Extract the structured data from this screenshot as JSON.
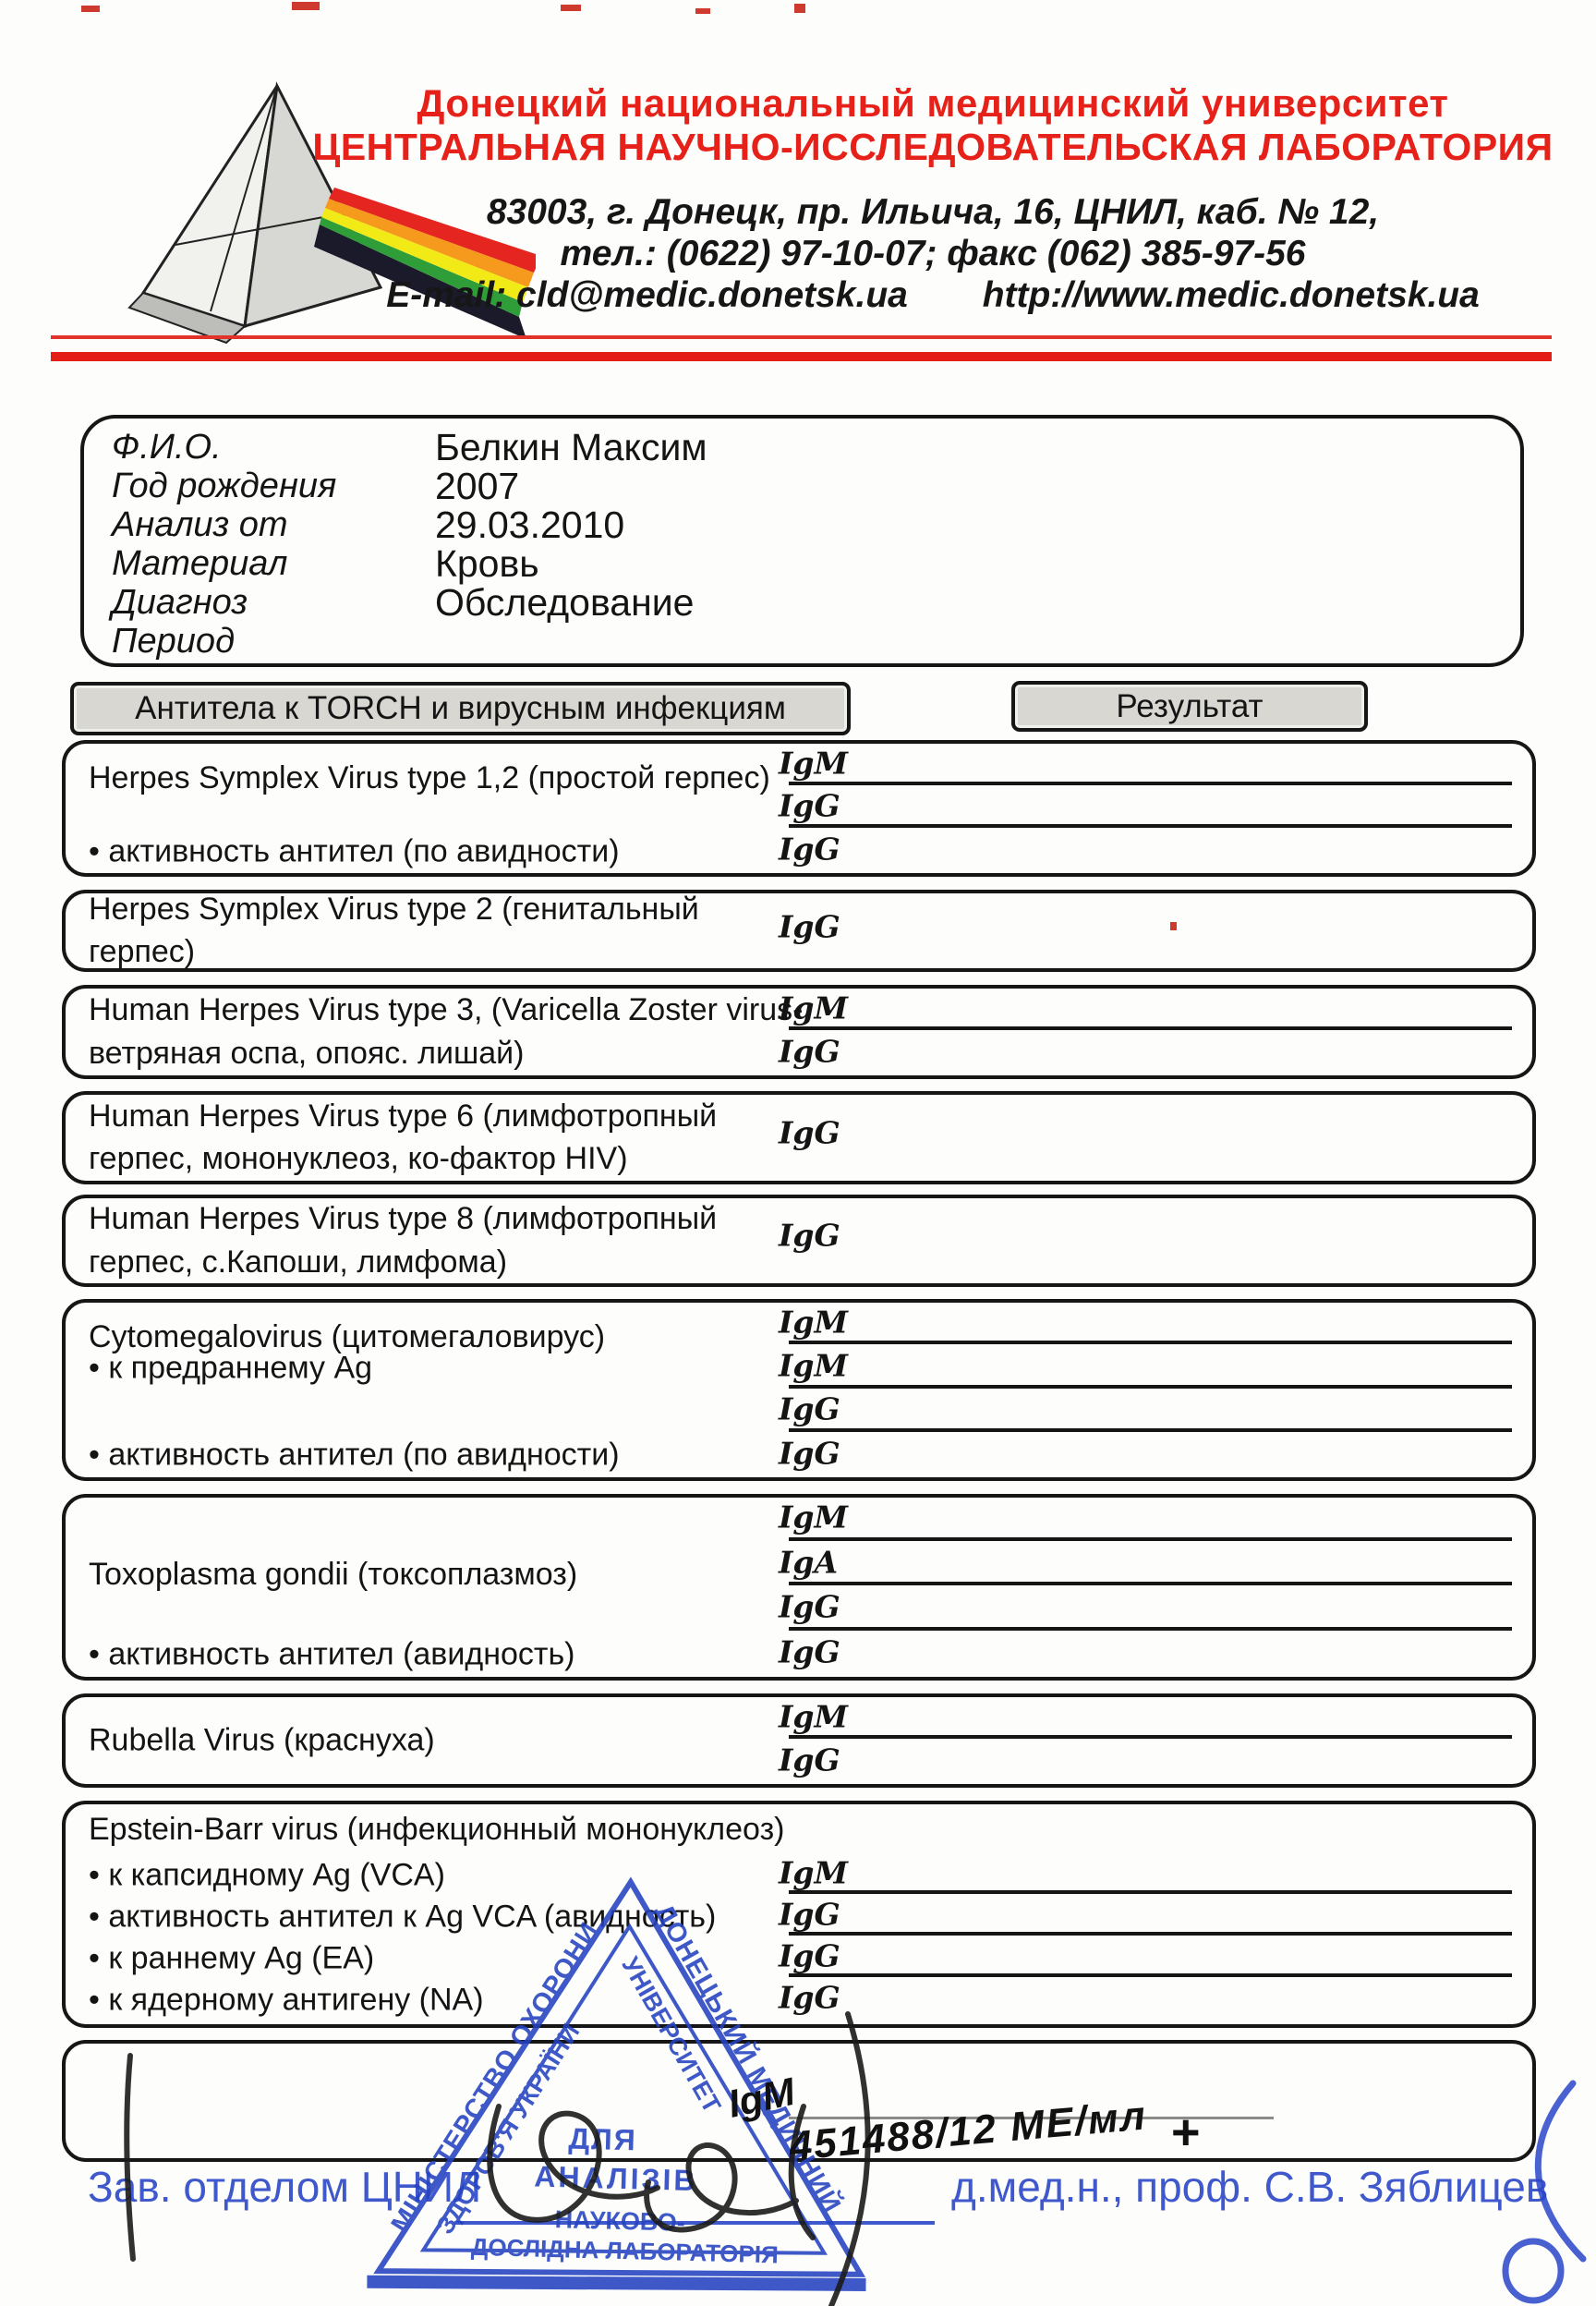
{
  "header": {
    "university": "Донецкий национальный медицинский университет",
    "laboratory": "ЦЕНТРАЛЬНАЯ НАУЧНО-ИССЛЕДОВАТЕЛЬСКАЯ ЛАБОРАТОРИЯ",
    "address": "83003, г. Донецк, пр. Ильича, 16, ЦНИЛ, каб. № 12,",
    "phone_fax": "тел.: (0622) 97-10-07; факс (062) 385-97-56",
    "email": "E-mail: cld@medic.donetsk.ua",
    "website": "http://www.medic.donetsk.ua"
  },
  "patient": {
    "fields": [
      {
        "label": "Ф.И.О.",
        "value": "Белкин Максим"
      },
      {
        "label": "Год рождения",
        "value": "2007"
      },
      {
        "label": "Анализ от",
        "value": "29.03.2010"
      },
      {
        "label": "Материал",
        "value": "Кровь"
      },
      {
        "label": "Диагноз",
        "value": "Обследование"
      },
      {
        "label": "Период",
        "value": ""
      }
    ]
  },
  "table": {
    "section_header": "Антитела к TORCH и вирусным инфекциям",
    "result_header": "Результат",
    "blocks": [
      {
        "name": [
          "Herpes Symplex Virus type 1,2 (простой герпес)"
        ],
        "name_valign": "top",
        "rows": [
          {
            "sub": "",
            "ig": "IgM",
            "line": true
          },
          {
            "sub": "",
            "ig": "IgG",
            "line": true
          },
          {
            "sub": "• активность антител (по авидности)",
            "ig": "IgG",
            "line": false
          }
        ]
      },
      {
        "name": [
          "Herpes Symplex Virus type 2 (генитальный",
          "герпес)"
        ],
        "name_valign": "middle",
        "rows": [
          {
            "sub": "",
            "ig": "IgG",
            "line": false
          }
        ]
      },
      {
        "name": [
          "Human Herpes Virus type 3, (Varicella Zoster virus-",
          "ветряная оспа, опояс. лишай)"
        ],
        "name_valign": "middle",
        "rows": [
          {
            "sub": "",
            "ig": "IgM",
            "line": true
          },
          {
            "sub": "",
            "ig": "IgG",
            "line": false
          }
        ]
      },
      {
        "name": [
          "Human Herpes Virus type 6 (лимфотропный",
          "герпес, мононуклеоз, ко-фактор HIV)"
        ],
        "name_valign": "middle",
        "rows": [
          {
            "sub": "",
            "ig": "IgG",
            "line": false
          }
        ]
      },
      {
        "name": [
          "Human Herpes Virus type 8 (лимфотропный",
          "герпес, с.Капоши, лимфома)"
        ],
        "name_valign": "middle",
        "rows": [
          {
            "sub": "",
            "ig": "IgG",
            "line": false
          }
        ]
      },
      {
        "name": [
          "Cytomegalovirus (цитомегаловирус)"
        ],
        "name_valign": "top",
        "rows": [
          {
            "sub": "",
            "ig": "IgM",
            "line": true
          },
          {
            "sub": "• к предраннему Ag",
            "ig": "IgM",
            "line": true
          },
          {
            "sub": "",
            "ig": "IgG",
            "line": true
          },
          {
            "sub": "• активность антител (по авидности)",
            "ig": "IgG",
            "line": false
          }
        ]
      },
      {
        "name": [
          "Toxoplasma gondii (токсоплазмоз)"
        ],
        "name_valign": "upper",
        "rows": [
          {
            "sub": "",
            "ig": "IgM",
            "line": true
          },
          {
            "sub": "",
            "ig": "IgA",
            "line": true
          },
          {
            "sub": "",
            "ig": "IgG",
            "line": true
          },
          {
            "sub": "• активность антител (авидность)",
            "ig": "IgG",
            "line": false
          }
        ]
      },
      {
        "name": [
          "Rubella Virus (краснуха)"
        ],
        "name_valign": "middle",
        "rows": [
          {
            "sub": "",
            "ig": "IgM",
            "line": true
          },
          {
            "sub": "",
            "ig": "IgG",
            "line": false
          }
        ]
      },
      {
        "name": [
          "Epstein-Barr virus (инфекционный мононуклеоз)"
        ],
        "name_valign": "stacked",
        "rows": [
          {
            "sub": "• к капсидному Ag (VCA)",
            "ig": "IgM",
            "line": true
          },
          {
            "sub": "• активность антител к Ag VCA (авидность)",
            "ig": "IgG",
            "line": true
          },
          {
            "sub": "• к раннему Ag (EA)",
            "ig": "IgG",
            "line": true
          },
          {
            "sub": "• к ядерному антигену (NA)",
            "ig": "IgG",
            "line": false
          }
        ]
      },
      {
        "name": [],
        "name_valign": "none",
        "rows": [
          {
            "sub": "",
            "ig": "",
            "line": true,
            "faint": true
          }
        ]
      }
    ]
  },
  "handwriting": {
    "ig": "IgM",
    "result_value": "451488/12 МЕ/мл",
    "plus": "+"
  },
  "stamp": {
    "ministry_line1": "МІНІСТЕРСТВО ОХОРОНИ",
    "ministry_line2": "ЗДОРОВ'Я УКРАЇНИ",
    "university_line1": "ДОНЕЦЬКИЙ МЕДИЧНИЙ",
    "university_line2": "УНІВЕРСИТЕТ",
    "center_line1": "ДЛЯ",
    "center_line2": "АНАЛІЗІВ",
    "bottom_line1": "НАУКОВО-",
    "bottom_line2": "ДОСЛІДНА ЛАБОРАТОРІЯ"
  },
  "footer": {
    "left": "Зав. отделом ЦНИЛ",
    "right": "д.мед.н., проф. С.В. Зяблицев"
  },
  "colors": {
    "accent_red": "#e62119",
    "stamp_blue": "#2443c0",
    "footer_blue": "#3f58cc"
  }
}
